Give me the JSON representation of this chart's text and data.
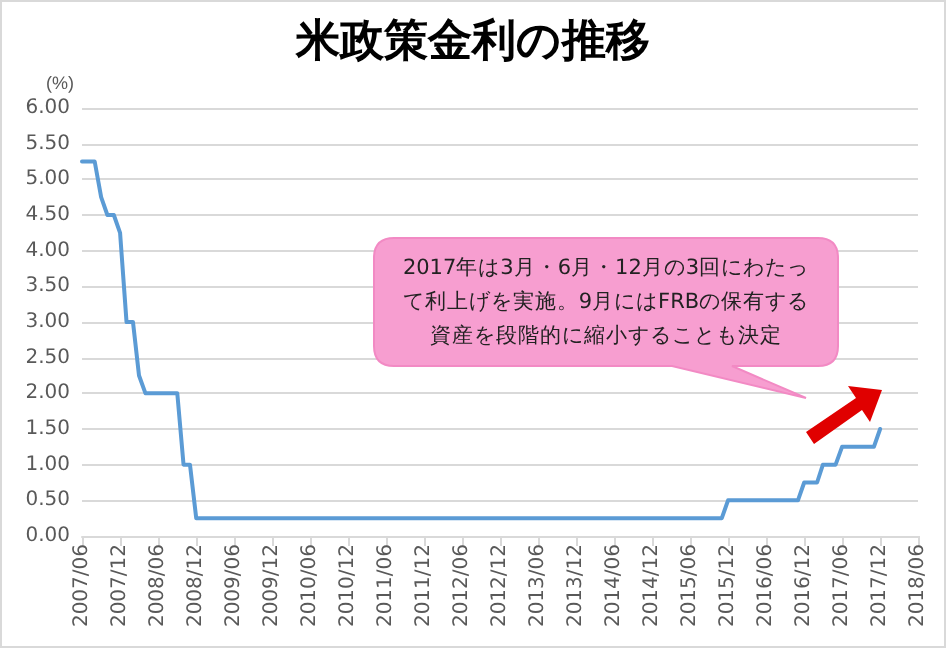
{
  "chart_data": {
    "type": "line",
    "title": "米政策金利の推移",
    "ylabel": "(%)",
    "annotations": [
      "2017年は3月・6月・12月の3回にわたって利上げを実施。9月にはFRBの保有する資産を段階的に縮小することも決定"
    ],
    "series": [
      {
        "color": "#5b9bd5",
        "x": [
          "2007-06",
          "2007-08",
          "2007-09",
          "2007-10",
          "2007-11",
          "2007-12",
          "2008-01",
          "2008-02",
          "2008-03",
          "2008-04",
          "2008-09",
          "2008-10",
          "2008-11",
          "2008-12",
          "2015-11",
          "2015-12",
          "2016-11",
          "2016-12",
          "2017-02",
          "2017-03",
          "2017-05",
          "2017-06",
          "2017-11",
          "2017-12"
        ],
        "values": [
          5.25,
          5.25,
          4.75,
          4.5,
          4.5,
          4.25,
          3.0,
          3.0,
          2.25,
          2.0,
          2.0,
          1.0,
          1.0,
          0.25,
          0.25,
          0.5,
          0.5,
          0.75,
          0.75,
          1.0,
          1.0,
          1.25,
          1.25,
          1.5
        ]
      }
    ],
    "xlim": [
      "2007-06",
      "2018-06"
    ],
    "xticks": [
      {
        "value": "2007-06",
        "label": "2007/06"
      },
      {
        "value": "2007-12",
        "label": "2007/12"
      },
      {
        "value": "2008-06",
        "label": "2008/06"
      },
      {
        "value": "2008-12",
        "label": "2008/12"
      },
      {
        "value": "2009-06",
        "label": "2009/06"
      },
      {
        "value": "2009-12",
        "label": "2009/12"
      },
      {
        "value": "2010-06",
        "label": "2010/06"
      },
      {
        "value": "2010-12",
        "label": "2010/12"
      },
      {
        "value": "2011-06",
        "label": "2011/06"
      },
      {
        "value": "2011-12",
        "label": "2011/12"
      },
      {
        "value": "2012-06",
        "label": "2012/06"
      },
      {
        "value": "2012-12",
        "label": "2012/12"
      },
      {
        "value": "2013-06",
        "label": "2013/06"
      },
      {
        "value": "2013-12",
        "label": "2013/12"
      },
      {
        "value": "2014-06",
        "label": "2014/06"
      },
      {
        "value": "2014-12",
        "label": "2014/12"
      },
      {
        "value": "2015-06",
        "label": "2015/06"
      },
      {
        "value": "2015-12",
        "label": "2015/12"
      },
      {
        "value": "2016-06",
        "label": "2016/06"
      },
      {
        "value": "2016-12",
        "label": "2016/12"
      },
      {
        "value": "2017-06",
        "label": "2017/06"
      },
      {
        "value": "2017-12",
        "label": "2017/12"
      },
      {
        "value": "2018-06",
        "label": "2018/06"
      }
    ],
    "ylim": [
      0,
      6
    ],
    "yticks": [
      {
        "value": 0,
        "label": "0.00"
      },
      {
        "value": 0.5,
        "label": "0.50"
      },
      {
        "value": 1,
        "label": "1.00"
      },
      {
        "value": 1.5,
        "label": "1.50"
      },
      {
        "value": 2,
        "label": "2.00"
      },
      {
        "value": 2.5,
        "label": "2.50"
      },
      {
        "value": 3,
        "label": "3.00"
      },
      {
        "value": 3.5,
        "label": "3.50"
      },
      {
        "value": 4,
        "label": "4.00"
      },
      {
        "value": 4.5,
        "label": "4.50"
      },
      {
        "value": 5,
        "label": "5.00"
      },
      {
        "value": 5.5,
        "label": "5.50"
      },
      {
        "value": 6,
        "label": "6.00"
      }
    ],
    "grid": "y",
    "marker": "none",
    "line_style": "solid"
  }
}
